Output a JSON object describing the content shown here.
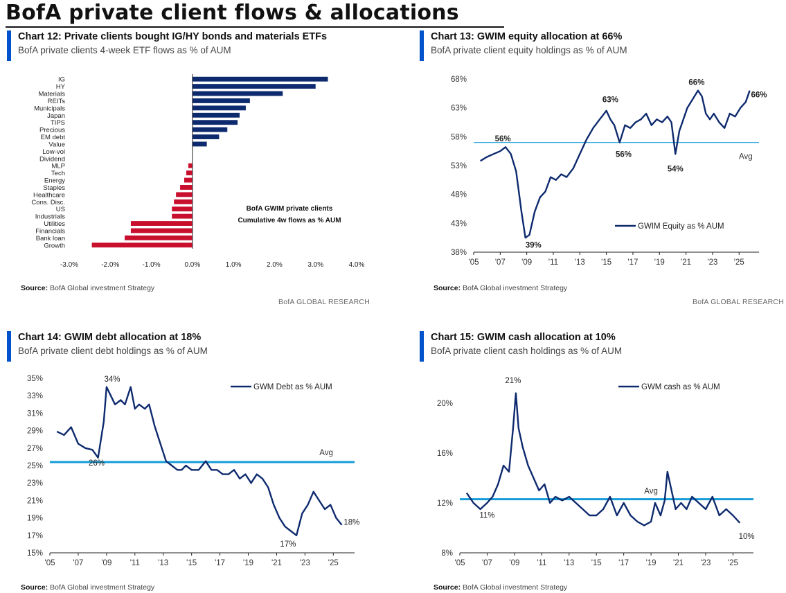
{
  "page": {
    "title": "BofA private client flows & allocations"
  },
  "colors": {
    "accent": "#0052cc",
    "navy": "#0e2a6e",
    "red": "#c8102e",
    "avg": "#149cd8"
  },
  "charts": [
    {
      "title": "Chart 12: Private clients bought IG/HY bonds and materials ETFs",
      "subtitle": "BofA private clients 4-week ETF flows as % of AUM",
      "source_label": "Source:",
      "source_text": "BofA Global investment Strategy",
      "brand": "BofA GLOBAL RESEARCH"
    },
    {
      "title": "Chart 13: GWIM equity allocation at 66%",
      "subtitle": "BofA private client equity holdings as % of AUM",
      "source_label": "Source:",
      "source_text": "BofA Global investment Strategy",
      "brand": "BofA GLOBAL RESEARCH"
    },
    {
      "title": "Chart 14: GWIM debt allocation at 18%",
      "subtitle": "BofA private client debt holdings as % of AUM",
      "source_label": "Source:",
      "source_text": "BofA Global investment Strategy",
      "brand": ""
    },
    {
      "title": "Chart 15: GWIM cash allocation at 10%",
      "subtitle": "BofA private client cash holdings as % of AUM",
      "source_label": "Source:",
      "source_text": "BofA Global investment Strategy",
      "brand": ""
    }
  ],
  "chart_data": [
    {
      "type": "bar",
      "orientation": "horizontal",
      "title": "Chart 12: Private clients bought IG/HY bonds and materials ETFs",
      "categories": [
        "IG",
        "HY",
        "Materials",
        "REITs",
        "Municipals",
        "Japan",
        "TIPS",
        "Precious",
        "EM debt",
        "Value",
        "Low-vol",
        "Dividend",
        "MLP",
        "Tech",
        "Energy",
        "Staples",
        "Healthcare",
        "Cons. Disc.",
        "US",
        "Industrials",
        "Utilities",
        "Financials",
        "Bank loan",
        "Growth"
      ],
      "values": [
        3.3,
        3.0,
        2.2,
        1.4,
        1.3,
        1.15,
        1.1,
        0.85,
        0.65,
        0.35,
        0.0,
        0.0,
        -0.1,
        -0.15,
        -0.2,
        -0.3,
        -0.4,
        -0.45,
        -0.5,
        -0.5,
        -1.5,
        -1.5,
        -1.65,
        -2.45
      ],
      "xlim": [
        -3.0,
        4.0
      ],
      "xticks": [
        -3.0,
        -2.0,
        -1.0,
        0.0,
        1.0,
        2.0,
        3.0,
        4.0
      ],
      "tick_labels": [
        "-3.0%",
        "-2.0%",
        "-1.0%",
        "0.0%",
        "1.0%",
        "2.0%",
        "3.0%",
        "4.0%"
      ],
      "annotation": [
        "BofA GWIM private clients",
        "Cumulative 4w flows as % AUM"
      ]
    },
    {
      "type": "line",
      "title": "Chart 13: GWIM equity allocation at 66%",
      "series": [
        {
          "name": "GWIM Equity as % AUM",
          "x": [
            2005.5,
            2006.0,
            2006.5,
            2007.0,
            2007.4,
            2007.8,
            2008.2,
            2008.6,
            2008.9,
            2009.2,
            2009.6,
            2010.0,
            2010.4,
            2010.8,
            2011.2,
            2011.6,
            2012.0,
            2012.5,
            2013.0,
            2013.5,
            2014.0,
            2014.5,
            2015.0,
            2015.3,
            2015.6,
            2016.0,
            2016.4,
            2016.8,
            2017.2,
            2017.6,
            2018.0,
            2018.4,
            2018.8,
            2019.2,
            2019.6,
            2019.9,
            2020.2,
            2020.5,
            2020.8,
            2021.1,
            2021.5,
            2021.9,
            2022.2,
            2022.5,
            2022.8,
            2023.1,
            2023.5,
            2023.9,
            2024.3,
            2024.7,
            2025.1,
            2025.5,
            2025.8
          ],
          "y": [
            53.8,
            54.5,
            55.0,
            55.5,
            56.2,
            55.0,
            52.0,
            45.0,
            40.5,
            41.0,
            45.0,
            47.5,
            48.5,
            51.0,
            50.5,
            51.5,
            51.0,
            52.5,
            55.0,
            57.5,
            59.5,
            61.0,
            62.5,
            61.0,
            60.0,
            57.0,
            60.0,
            59.5,
            60.5,
            61.0,
            62.0,
            60.0,
            61.0,
            60.5,
            61.5,
            60.5,
            55.0,
            59.0,
            61.0,
            63.0,
            64.5,
            66.0,
            65.0,
            62.0,
            61.0,
            62.0,
            60.5,
            59.5,
            62.0,
            61.5,
            63.0,
            64.0,
            66.0
          ]
        }
      ],
      "avg": 57.0,
      "avg_label": "Avg",
      "ylim": [
        38,
        68
      ],
      "yticks": [
        38,
        43,
        48,
        53,
        58,
        63,
        68
      ],
      "ytick_labels": [
        "38%",
        "43%",
        "48%",
        "53%",
        "58%",
        "63%",
        "68%"
      ],
      "xlim": [
        2005,
        2026.5
      ],
      "xticks": [
        2005,
        2007,
        2009,
        2011,
        2013,
        2015,
        2017,
        2019,
        2021,
        2023,
        2025
      ],
      "xtick_labels": [
        "'05",
        "'07",
        "'09",
        "'11",
        "'13",
        "'15",
        "'17",
        "'19",
        "'21",
        "'23",
        "'25"
      ],
      "annotations": [
        {
          "x": 2007.2,
          "y": 57.2,
          "text": "56%"
        },
        {
          "x": 2009.5,
          "y": 38.8,
          "text": "39%"
        },
        {
          "x": 2015.3,
          "y": 64.0,
          "text": "63%"
        },
        {
          "x": 2016.3,
          "y": 54.5,
          "text": "56%"
        },
        {
          "x": 2020.2,
          "y": 52.0,
          "text": "54%"
        },
        {
          "x": 2021.8,
          "y": 67.0,
          "text": "66%"
        },
        {
          "x": 2026.5,
          "y": 64.8,
          "text": "66%"
        }
      ]
    },
    {
      "type": "line",
      "title": "Chart 14: GWIM debt allocation at 18%",
      "series": [
        {
          "name": "GWM Debt as % AUM",
          "x": [
            2005.5,
            2006.0,
            2006.5,
            2007.0,
            2007.5,
            2008.0,
            2008.4,
            2008.8,
            2009.0,
            2009.3,
            2009.6,
            2010.0,
            2010.3,
            2010.7,
            2011.0,
            2011.3,
            2011.7,
            2012.0,
            2012.4,
            2012.8,
            2013.2,
            2013.6,
            2014.0,
            2014.3,
            2014.6,
            2015.0,
            2015.5,
            2016.0,
            2016.4,
            2016.8,
            2017.2,
            2017.6,
            2018.0,
            2018.4,
            2018.8,
            2019.2,
            2019.6,
            2020.0,
            2020.4,
            2020.8,
            2021.2,
            2021.6,
            2022.0,
            2022.4,
            2022.8,
            2023.2,
            2023.6,
            2024.0,
            2024.4,
            2024.8,
            2025.2,
            2025.6
          ],
          "y": [
            28.9,
            28.5,
            29.4,
            27.5,
            27.0,
            26.8,
            25.9,
            30.0,
            34.0,
            33.0,
            32.0,
            32.5,
            32.0,
            34.0,
            31.5,
            32.0,
            31.5,
            32.0,
            29.5,
            27.5,
            25.5,
            25.0,
            24.5,
            24.5,
            25.0,
            24.5,
            24.5,
            25.5,
            24.5,
            24.5,
            24.0,
            24.0,
            24.5,
            23.5,
            24.0,
            23.0,
            24.0,
            23.5,
            22.5,
            20.5,
            19.0,
            18.0,
            17.5,
            17.0,
            19.5,
            20.5,
            22.0,
            21.0,
            20.0,
            20.5,
            19.0,
            18.2
          ]
        }
      ],
      "avg": 25.4,
      "avg_label": "Avg",
      "ylim": [
        15,
        35
      ],
      "yticks": [
        15,
        17,
        19,
        21,
        23,
        25,
        27,
        29,
        31,
        33,
        35
      ],
      "ytick_labels": [
        "15%",
        "17%",
        "19%",
        "21%",
        "23%",
        "25%",
        "27%",
        "29%",
        "31%",
        "33%",
        "35%"
      ],
      "xlim": [
        2005,
        2026.5
      ],
      "xticks": [
        2005,
        2007,
        2009,
        2011,
        2013,
        2015,
        2017,
        2019,
        2021,
        2023,
        2025
      ],
      "xtick_labels": [
        "'05",
        "'07",
        "'09",
        "'11",
        "'13",
        "'15",
        "'17",
        "'19",
        "'21",
        "'23",
        "'25"
      ],
      "annotations": [
        {
          "x": 2009.4,
          "y": 34.6,
          "text": "34%"
        },
        {
          "x": 2008.3,
          "y": 25.0,
          "text": "26%"
        },
        {
          "x": 2021.8,
          "y": 15.7,
          "text": "17%"
        },
        {
          "x": 2026.3,
          "y": 18.2,
          "text": "18%"
        }
      ]
    },
    {
      "type": "line",
      "title": "Chart 15: GWIM cash allocation at 10%",
      "series": [
        {
          "name": "GWM cash as % AUM",
          "x": [
            2005.5,
            2006.0,
            2006.5,
            2007.0,
            2007.4,
            2007.8,
            2008.2,
            2008.6,
            2008.9,
            2009.1,
            2009.3,
            2009.6,
            2010.0,
            2010.4,
            2010.8,
            2011.2,
            2011.6,
            2012.0,
            2012.5,
            2013.0,
            2013.5,
            2014.0,
            2014.5,
            2015.0,
            2015.5,
            2016.0,
            2016.5,
            2017.0,
            2017.5,
            2018.0,
            2018.5,
            2019.0,
            2019.3,
            2019.7,
            2020.0,
            2020.2,
            2020.5,
            2020.8,
            2021.2,
            2021.6,
            2022.0,
            2022.5,
            2023.0,
            2023.5,
            2024.0,
            2024.5,
            2025.0,
            2025.5
          ],
          "y": [
            12.8,
            12.0,
            11.5,
            12.0,
            12.5,
            13.5,
            15.0,
            14.5,
            18.0,
            20.8,
            18.0,
            16.5,
            15.0,
            14.0,
            13.0,
            13.5,
            12.0,
            12.5,
            12.2,
            12.5,
            12.0,
            11.5,
            11.0,
            11.0,
            11.5,
            12.5,
            11.0,
            12.0,
            11.0,
            10.5,
            10.2,
            10.5,
            12.0,
            11.0,
            12.2,
            14.5,
            13.0,
            11.5,
            12.0,
            11.5,
            12.5,
            12.0,
            11.5,
            12.5,
            11.0,
            11.5,
            11.0,
            10.4
          ]
        }
      ],
      "avg": 12.3,
      "avg_label": "Avg",
      "ylim": [
        8,
        22
      ],
      "yticks": [
        8,
        12,
        16,
        20
      ],
      "ytick_labels": [
        "8%",
        "12%",
        "16%",
        "20%"
      ],
      "xlim": [
        2005,
        2026.5
      ],
      "xticks": [
        2005,
        2007,
        2009,
        2011,
        2013,
        2015,
        2017,
        2019,
        2021,
        2023,
        2025
      ],
      "xtick_labels": [
        "'05",
        "'07",
        "'09",
        "'11",
        "'13",
        "'15",
        "'17",
        "'19",
        "'21",
        "'23",
        "'25"
      ],
      "annotations": [
        {
          "x": 2008.9,
          "y": 21.6,
          "text": "21%"
        },
        {
          "x": 2007.0,
          "y": 10.8,
          "text": "11%"
        },
        {
          "x": 2026.0,
          "y": 9.1,
          "text": "10%"
        }
      ]
    }
  ]
}
